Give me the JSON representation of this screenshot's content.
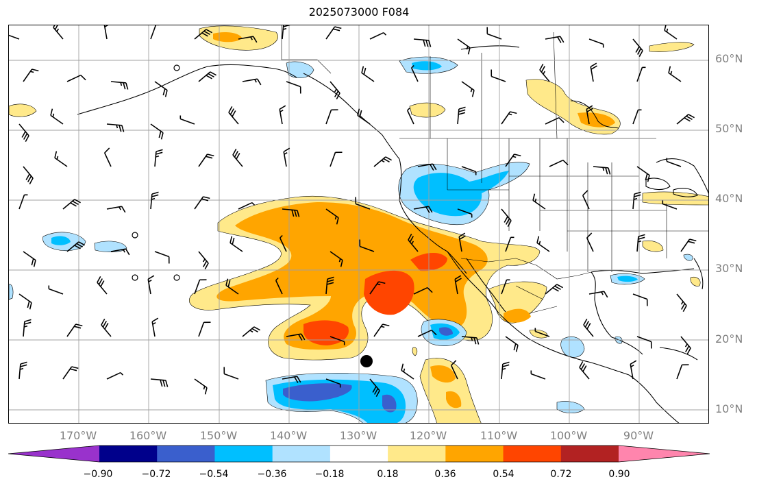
{
  "title": "2025073000 F084",
  "lat_labels": [
    "60°N",
    "50°N",
    "40°N",
    "30°N",
    "20°N",
    "10°N"
  ],
  "lon_labels": [
    "170°W",
    "160°W",
    "150°W",
    "140°W",
    "130°W",
    "120°W",
    "110°W",
    "100°W",
    "90°W"
  ],
  "colorbar": {
    "tick_labels": [
      "−0.90",
      "−0.72",
      "−0.54",
      "−0.36",
      "−0.18",
      "0.18",
      "0.36",
      "0.54",
      "0.72",
      "0.90"
    ],
    "colors": [
      "#9932CC",
      "#00008B",
      "#3A5FCD",
      "#00BFFF",
      "#B0E2FF",
      "#FFFFFF",
      "#FFE98A",
      "#FFA500",
      "#FF4500",
      "#B22222",
      "#FF85AD"
    ]
  },
  "icons": {
    "marker": "black-dot-marker",
    "wind": "wind-barb-icon"
  }
}
